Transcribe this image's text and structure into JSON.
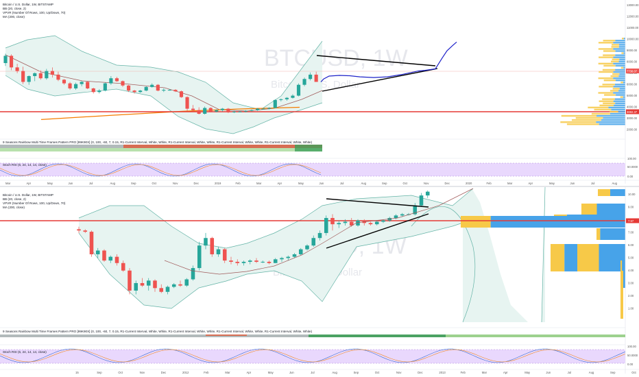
{
  "colors": {
    "up": "#26a69a",
    "down": "#ef5350",
    "bb_fill": "#e7f4f1",
    "bb_line": "#63b3a6",
    "ma_short": "#a05a5a",
    "ma_long": "#f57c00",
    "hline": "#e53935",
    "stoch_bg": "#e9d8fd",
    "drawn_path": "#1e22c9",
    "trendline": "#000000",
    "vpvr_up": "#f7c948",
    "vpvr_down": "#47a3e9"
  },
  "top_panel": {
    "watermark_symbol": "BTCUSD, 1W",
    "watermark_name": "Bitcoin / U.S. Dollar",
    "legend": [
      "Bitcoin / U.S. Dollar, 1W, BITSTAMP",
      "BB (20, close, 2)",
      "VPVR (Number Of Rows, 100, Up/Down, 70)",
      "MA (200, close)"
    ],
    "price_ticks": [
      "13000.00",
      "12000.00",
      "11000.00",
      "10000.00",
      "9000.00",
      "8000.00",
      "7000.00",
      "6000.00",
      "5000.00",
      "4000.00",
      "3000.00",
      "2000.00"
    ],
    "price_label_current": "7738.07",
    "price_label_line": "3692.37",
    "rainbow_label": "9 Seasons Rainbow Multi Time Frames Pattern PRO [99K90X] (0, 100, -60, 7, 0.15, R1-Current Interval, White, White, R1-Current Interval, White, White, R1-Current Interval, White, White, R1-Current Interval, White, White)",
    "stoch_label": "Stoch RSI (6, 24, 14, 14, close)",
    "stoch_ticks": [
      "100.00",
      "50.0000",
      "0.00"
    ],
    "time_axis": [
      "Mar",
      "Apr",
      "May",
      "Jun",
      "Jul",
      "Aug",
      "Sep",
      "Oct",
      "Nov",
      "Dec",
      "2019",
      "Feb",
      "Mar",
      "Apr",
      "May",
      "Jun",
      "Jul",
      "Aug",
      "Sep",
      "Oct",
      "Nov",
      "Dec",
      "2020",
      "Feb",
      "Mar",
      "Apr",
      "May",
      "Jun",
      "Jul",
      "Aug"
    ]
  },
  "bottom_panel": {
    "watermark_symbol": "BTCUSD, 1W",
    "watermark_name": "Bitcoin / U.S. Dollar",
    "legend": [
      "Bitcoin / U.S. Dollar, 1W, BITSTAMP",
      "BB (20, close, 2)",
      "VPVR (Number Of Rows, 100, Up/Down, 70)",
      "MA (200, close)"
    ],
    "price_ticks": [
      "10.00",
      "9.00",
      "8.00",
      "7.00",
      "6.00",
      "5.00",
      "4.00",
      "3.00",
      "2.00",
      "1.00"
    ],
    "price_label_line": "7.97",
    "rainbow_label": "9 Seasons Rainbow Multi Time Frames Pattern PRO [99K90X] (0, 100, -60, 7, 0.15, R1-Current Interval, White, White, R1-Current Interval, White, White, R1-Current Interval, White, White, R1-Current Interval, White, White)",
    "stoch_label": "Stoch RSI (6, 24, 14, 14, close)",
    "stoch_ticks": [
      "100.00",
      "50.0000",
      "0.00"
    ],
    "time_axis": [
      "15",
      "Sep",
      "Oct",
      "Nov",
      "Dec",
      "2012",
      "Feb",
      "Mar",
      "Apr",
      "May",
      "Jun",
      "Jul",
      "Aug",
      "Sep",
      "Oct",
      "Nov",
      "Dec",
      "2013",
      "Feb",
      "Mar",
      "Apr",
      "May",
      "Jun",
      "Jul",
      "Aug",
      "Sep",
      "Oct"
    ]
  },
  "chart_data": [
    {
      "type": "candlestick",
      "title": "Bitcoin / U.S. Dollar, 1W, BITSTAMP",
      "ylim": [
        1500,
        13800
      ],
      "candles_ohlc": [
        [
          10300,
          11600,
          9900,
          11300
        ],
        [
          11300,
          11500,
          9300,
          9700
        ],
        [
          9700,
          10200,
          8900,
          9200
        ],
        [
          9200,
          9800,
          7400,
          7700
        ],
        [
          7700,
          8600,
          7300,
          8500
        ],
        [
          8500,
          9000,
          7800,
          8900
        ],
        [
          8900,
          9300,
          8000,
          8200
        ],
        [
          8200,
          9500,
          8000,
          9200
        ],
        [
          9200,
          9700,
          8300,
          8700
        ],
        [
          8700,
          9100,
          7800,
          8000
        ],
        [
          8000,
          8100,
          7300,
          7500
        ],
        [
          7500,
          7700,
          6600,
          6800
        ],
        [
          6800,
          7600,
          6600,
          7400
        ],
        [
          7400,
          7800,
          7100,
          7700
        ],
        [
          7700,
          7800,
          6700,
          6800
        ],
        [
          6800,
          6900,
          6100,
          6300
        ],
        [
          6300,
          6700,
          6100,
          6500
        ],
        [
          6500,
          7600,
          6400,
          7500
        ],
        [
          7500,
          8500,
          7300,
          8200
        ],
        [
          8200,
          8400,
          7700,
          7800
        ],
        [
          7800,
          7900,
          7000,
          7200
        ],
        [
          7200,
          7300,
          6300,
          6500
        ],
        [
          6500,
          6600,
          6100,
          6300
        ],
        [
          6300,
          6600,
          6200,
          6500
        ],
        [
          6500,
          7100,
          6400,
          7000
        ],
        [
          7000,
          7500,
          6900,
          7300
        ],
        [
          7300,
          7400,
          6400,
          6500
        ],
        [
          6500,
          6800,
          6300,
          6600
        ],
        [
          6600,
          6700,
          6500,
          6600
        ],
        [
          6600,
          6700,
          6300,
          6400
        ],
        [
          6400,
          6500,
          5500,
          5600
        ],
        [
          5600,
          5700,
          3700,
          4000
        ],
        [
          4000,
          4500,
          3600,
          3800
        ],
        [
          3800,
          4200,
          3200,
          3300
        ],
        [
          3300,
          4300,
          3200,
          4100
        ],
        [
          4100,
          4200,
          3500,
          3600
        ],
        [
          3600,
          3900,
          3500,
          3800
        ],
        [
          3800,
          4100,
          3600,
          4000
        ],
        [
          4000,
          4100,
          3400,
          3500
        ],
        [
          3500,
          3700,
          3400,
          3600
        ],
        [
          3600,
          3700,
          3500,
          3600
        ],
        [
          3600,
          3800,
          3500,
          3700
        ],
        [
          3700,
          3900,
          3600,
          3800
        ],
        [
          3800,
          4100,
          3700,
          4000
        ],
        [
          4000,
          4100,
          3900,
          4000
        ],
        [
          4000,
          4200,
          3900,
          4100
        ],
        [
          4100,
          5300,
          4100,
          5200
        ],
        [
          5200,
          5400,
          5000,
          5300
        ],
        [
          5300,
          5600,
          5100,
          5500
        ],
        [
          5500,
          6000,
          5400,
          5800
        ],
        [
          5800,
          7500,
          5700,
          7300
        ],
        [
          7300,
          8300,
          7100,
          8100
        ],
        [
          8100,
          9000,
          7900,
          8700
        ],
        [
          8700,
          9100,
          7800,
          7700
        ]
      ],
      "ma200": [
        [
          20,
          2500
        ],
        [
          60,
          3100
        ],
        [
          100,
          3650
        ],
        [
          130,
          3950
        ],
        [
          165,
          4200
        ]
      ],
      "horizontal_lines": [
        3692.37
      ],
      "current_price": 7738.07,
      "projection_path_y": [
        7700,
        8100,
        8500,
        8600,
        8550,
        8400,
        8300,
        8400,
        8700,
        9000,
        9200,
        9300,
        9400,
        9500,
        11000,
        12000,
        12700,
        13200
      ]
    },
    {
      "type": "candlestick",
      "title": "Bitcoin / U.S. Dollar, 1W, BITSTAMP",
      "ylim": [
        0.9,
        10.7
      ],
      "candles_ohlc": [
        [
          7.5,
          7.7,
          7.2,
          7.4
        ],
        [
          7.4,
          7.5,
          7.2,
          7.3
        ],
        [
          7.3,
          7.4,
          5.3,
          5.5
        ],
        [
          5.5,
          6.0,
          5.2,
          5.8
        ],
        [
          5.8,
          5.9,
          4.9,
          5.0
        ],
        [
          5.0,
          5.4,
          4.8,
          5.3
        ],
        [
          5.3,
          5.5,
          4.6,
          4.8
        ],
        [
          4.8,
          5.0,
          4.1,
          4.2
        ],
        [
          4.2,
          4.4,
          2.3,
          2.6
        ],
        [
          2.6,
          3.4,
          2.3,
          3.2
        ],
        [
          3.2,
          3.6,
          2.9,
          3.0
        ],
        [
          3.0,
          3.6,
          2.6,
          3.4
        ],
        [
          3.4,
          3.5,
          2.5,
          2.8
        ],
        [
          2.8,
          3.1,
          2.4,
          2.5
        ],
        [
          2.5,
          3.0,
          2.3,
          2.9
        ],
        [
          2.9,
          3.2,
          2.8,
          3.1
        ],
        [
          3.1,
          3.4,
          2.9,
          3.0
        ],
        [
          3.0,
          3.6,
          2.9,
          3.5
        ],
        [
          3.5,
          4.6,
          3.4,
          4.4
        ],
        [
          4.4,
          6.5,
          4.2,
          6.2
        ],
        [
          6.2,
          7.2,
          5.9,
          6.8
        ],
        [
          6.8,
          6.9,
          5.3,
          5.5
        ],
        [
          5.5,
          6.1,
          5.3,
          5.9
        ],
        [
          5.9,
          6.0,
          4.8,
          5.0
        ],
        [
          5.0,
          5.3,
          4.7,
          4.9
        ],
        [
          4.9,
          5.1,
          4.6,
          4.8
        ],
        [
          4.8,
          5.0,
          4.6,
          4.9
        ],
        [
          4.9,
          5.1,
          4.7,
          5.0
        ],
        [
          5.0,
          5.2,
          4.8,
          4.9
        ],
        [
          4.9,
          5.0,
          4.8,
          4.9
        ],
        [
          4.9,
          5.0,
          4.7,
          4.8
        ],
        [
          4.8,
          5.2,
          4.8,
          5.1
        ],
        [
          5.1,
          5.3,
          4.9,
          5.2
        ],
        [
          5.2,
          5.4,
          5.0,
          5.3
        ],
        [
          5.3,
          5.6,
          5.2,
          5.5
        ],
        [
          5.5,
          6.0,
          5.4,
          5.9
        ],
        [
          5.9,
          6.3,
          5.8,
          6.2
        ],
        [
          6.2,
          7.0,
          6.1,
          6.8
        ],
        [
          6.8,
          7.4,
          6.6,
          7.2
        ],
        [
          7.2,
          8.6,
          7.0,
          8.4
        ],
        [
          8.4,
          8.7,
          7.4,
          7.9
        ],
        [
          7.9,
          8.2,
          7.6,
          8.0
        ],
        [
          8.0,
          8.3,
          7.8,
          8.1
        ],
        [
          8.1,
          8.4,
          7.7,
          7.8
        ],
        [
          7.8,
          8.3,
          7.7,
          8.2
        ],
        [
          8.2,
          8.3,
          7.8,
          8.0
        ],
        [
          8.0,
          8.1,
          7.8,
          7.9
        ],
        [
          7.9,
          8.2,
          7.8,
          8.1
        ],
        [
          8.1,
          8.3,
          8.0,
          8.2
        ],
        [
          8.2,
          8.5,
          8.1,
          8.4
        ],
        [
          8.4,
          8.7,
          8.3,
          8.6
        ],
        [
          8.6,
          8.8,
          8.5,
          8.7
        ],
        [
          8.7,
          8.8,
          8.6,
          8.7
        ],
        [
          8.7,
          9.6,
          8.6,
          9.4
        ],
        [
          9.4,
          10.4,
          9.3,
          10.2
        ],
        [
          10.2,
          10.6,
          10.0,
          10.5
        ]
      ],
      "horizontal_lines": [
        7.97
      ],
      "current_price": 7.97
    }
  ]
}
